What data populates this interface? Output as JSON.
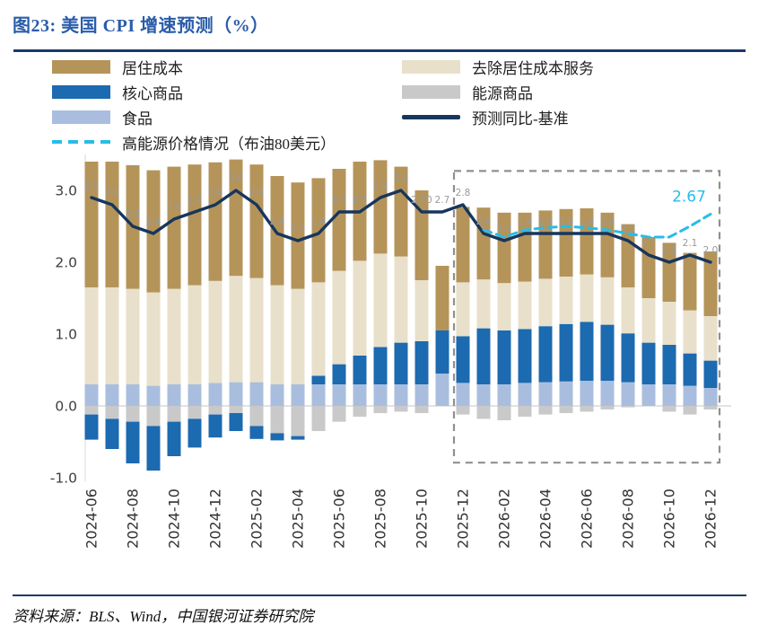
{
  "page": {
    "title": "图23: 美国 CPI 增速预测（%）",
    "source": "资料来源：BLS、Wind，中国银河证券研究院"
  },
  "accent": {
    "title_color": "#2a5caa",
    "rule_color": "#1a3a6a",
    "point_label_color": "#9a9a9a",
    "tick_label_color": "#3d3d3d",
    "zero_line_color": "#c4c4c4",
    "box_color": "#909090"
  },
  "legend": {
    "items": [
      {
        "label": "居住成本",
        "type": "bar",
        "color": "#b5945a"
      },
      {
        "label": "去除居住成本服务",
        "type": "bar",
        "color": "#e8e0ca"
      },
      {
        "label": "核心商品",
        "type": "bar",
        "color": "#1c6ab0"
      },
      {
        "label": "能源商品",
        "type": "bar",
        "color": "#c9c9c9"
      },
      {
        "label": "食品",
        "type": "bar",
        "color": "#a9bede"
      },
      {
        "label": "预测同比-基准",
        "type": "line",
        "color": "#17365d"
      },
      {
        "label": "高能源价格情况（布油80美元）",
        "type": "dashed-line",
        "color": "#27bdea"
      }
    ]
  },
  "chart_data": {
    "type": "bar",
    "subtype": "stacked-bars-with-lines",
    "title": "图23: 美国 CPI 增速预测（%）",
    "xlabel": "",
    "ylabel": "",
    "ylim": [
      -1.05,
      3.5
    ],
    "yticks": [
      "3.0",
      "2.0",
      "1.0",
      "0.0",
      "-1.0"
    ],
    "xtick_every": 2,
    "grid": "zero-line-only",
    "legend_position": "top",
    "x": [
      "2024-06",
      "2024-07",
      "2024-08",
      "2024-09",
      "2024-10",
      "2024-11",
      "2024-12",
      "2025-01",
      "2025-02",
      "2025-03",
      "2025-04",
      "2025-05",
      "2025-06",
      "2025-07",
      "2025-08",
      "2025-09",
      "2025-10",
      "2025-11",
      "2025-12",
      "2026-01",
      "2026-02",
      "2026-03",
      "2026-04",
      "2026-05",
      "2026-06",
      "2026-07",
      "2026-08",
      "2026-09",
      "2026-10",
      "2026-11",
      "2026-12"
    ],
    "stack_series": [
      {
        "name": "居住成本",
        "color": "#b5945a",
        "values": [
          1.75,
          1.75,
          1.72,
          1.7,
          1.7,
          1.68,
          1.65,
          1.62,
          1.58,
          1.52,
          1.48,
          1.45,
          1.42,
          1.38,
          1.3,
          1.25,
          1.25,
          0.9,
          1.05,
          1.0,
          0.98,
          0.96,
          0.95,
          0.94,
          0.92,
          0.9,
          0.88,
          0.85,
          0.82,
          0.8,
          0.9
        ]
      },
      {
        "name": "去除居住成本服务",
        "color": "#e8e0ca",
        "values": [
          1.35,
          1.35,
          1.33,
          1.3,
          1.33,
          1.38,
          1.42,
          1.48,
          1.45,
          1.38,
          1.33,
          1.3,
          1.3,
          1.32,
          1.3,
          1.2,
          0.85,
          0.0,
          0.75,
          0.68,
          0.66,
          0.66,
          0.66,
          0.66,
          0.66,
          0.66,
          0.64,
          0.62,
          0.6,
          0.6,
          0.62
        ]
      },
      {
        "name": "核心商品",
        "color": "#1c6ab0",
        "values": [
          -0.35,
          -0.42,
          -0.58,
          -0.62,
          -0.48,
          -0.4,
          -0.32,
          -0.25,
          -0.18,
          -0.1,
          -0.05,
          0.12,
          0.28,
          0.4,
          0.52,
          0.58,
          0.6,
          0.6,
          0.65,
          0.78,
          0.75,
          0.75,
          0.78,
          0.8,
          0.82,
          0.78,
          0.68,
          0.58,
          0.55,
          0.45,
          0.38
        ]
      },
      {
        "name": "能源商品",
        "color": "#c9c9c9",
        "values": [
          -0.12,
          -0.18,
          -0.22,
          -0.28,
          -0.22,
          -0.18,
          -0.12,
          -0.1,
          -0.28,
          -0.38,
          -0.42,
          -0.35,
          -0.22,
          -0.15,
          -0.1,
          -0.08,
          -0.1,
          0.0,
          -0.12,
          -0.18,
          -0.2,
          -0.15,
          -0.12,
          -0.1,
          -0.08,
          -0.05,
          -0.02,
          0.0,
          -0.08,
          -0.12,
          -0.05
        ]
      },
      {
        "name": "食品",
        "color": "#a9bede",
        "values": [
          0.3,
          0.3,
          0.3,
          0.28,
          0.3,
          0.3,
          0.32,
          0.33,
          0.33,
          0.3,
          0.3,
          0.3,
          0.3,
          0.3,
          0.3,
          0.3,
          0.3,
          0.45,
          0.32,
          0.3,
          0.3,
          0.32,
          0.33,
          0.34,
          0.35,
          0.35,
          0.33,
          0.3,
          0.3,
          0.28,
          0.25
        ]
      }
    ],
    "line_series": [
      {
        "name": "预测同比-基准",
        "color": "#17365d",
        "style": "solid",
        "values": [
          2.9,
          2.8,
          2.5,
          2.4,
          2.6,
          2.7,
          2.8,
          3.0,
          2.8,
          2.4,
          2.3,
          2.4,
          2.7,
          2.7,
          2.9,
          3.0,
          2.7,
          2.7,
          2.8,
          2.4,
          2.3,
          2.4,
          2.4,
          2.4,
          2.4,
          2.4,
          2.3,
          2.1,
          2.0,
          2.1,
          2.0
        ],
        "point_labels": [
          "2.9",
          "2.8",
          "2.5",
          "2.4",
          "2.6",
          "2.7",
          "2.8",
          "3.0",
          "2.8",
          "2.4",
          "2.3",
          "2.4",
          "2.7",
          "2.7",
          "2.9",
          "3.0",
          "2.70",
          "2.7",
          "2.8",
          "2.4",
          "2.3",
          "2.4",
          "2.4",
          "2.4",
          "2.4",
          "2.4",
          "2.3",
          "2.1",
          "2.0",
          "2.1",
          "2.0"
        ]
      },
      {
        "name": "高能源价格情况（布油80美元）",
        "color": "#27bdea",
        "style": "dashed",
        "values": [
          null,
          null,
          null,
          null,
          null,
          null,
          null,
          null,
          null,
          null,
          null,
          null,
          null,
          null,
          null,
          null,
          null,
          null,
          null,
          2.45,
          2.35,
          2.45,
          2.48,
          2.5,
          2.48,
          2.45,
          2.4,
          2.35,
          2.35,
          2.5,
          2.67
        ],
        "end_label": "2.67"
      }
    ],
    "forecast_box": {
      "from_x": "2025-12",
      "to_x": "2026-12",
      "y_top": 3.27,
      "y_bottom": -0.79
    }
  }
}
